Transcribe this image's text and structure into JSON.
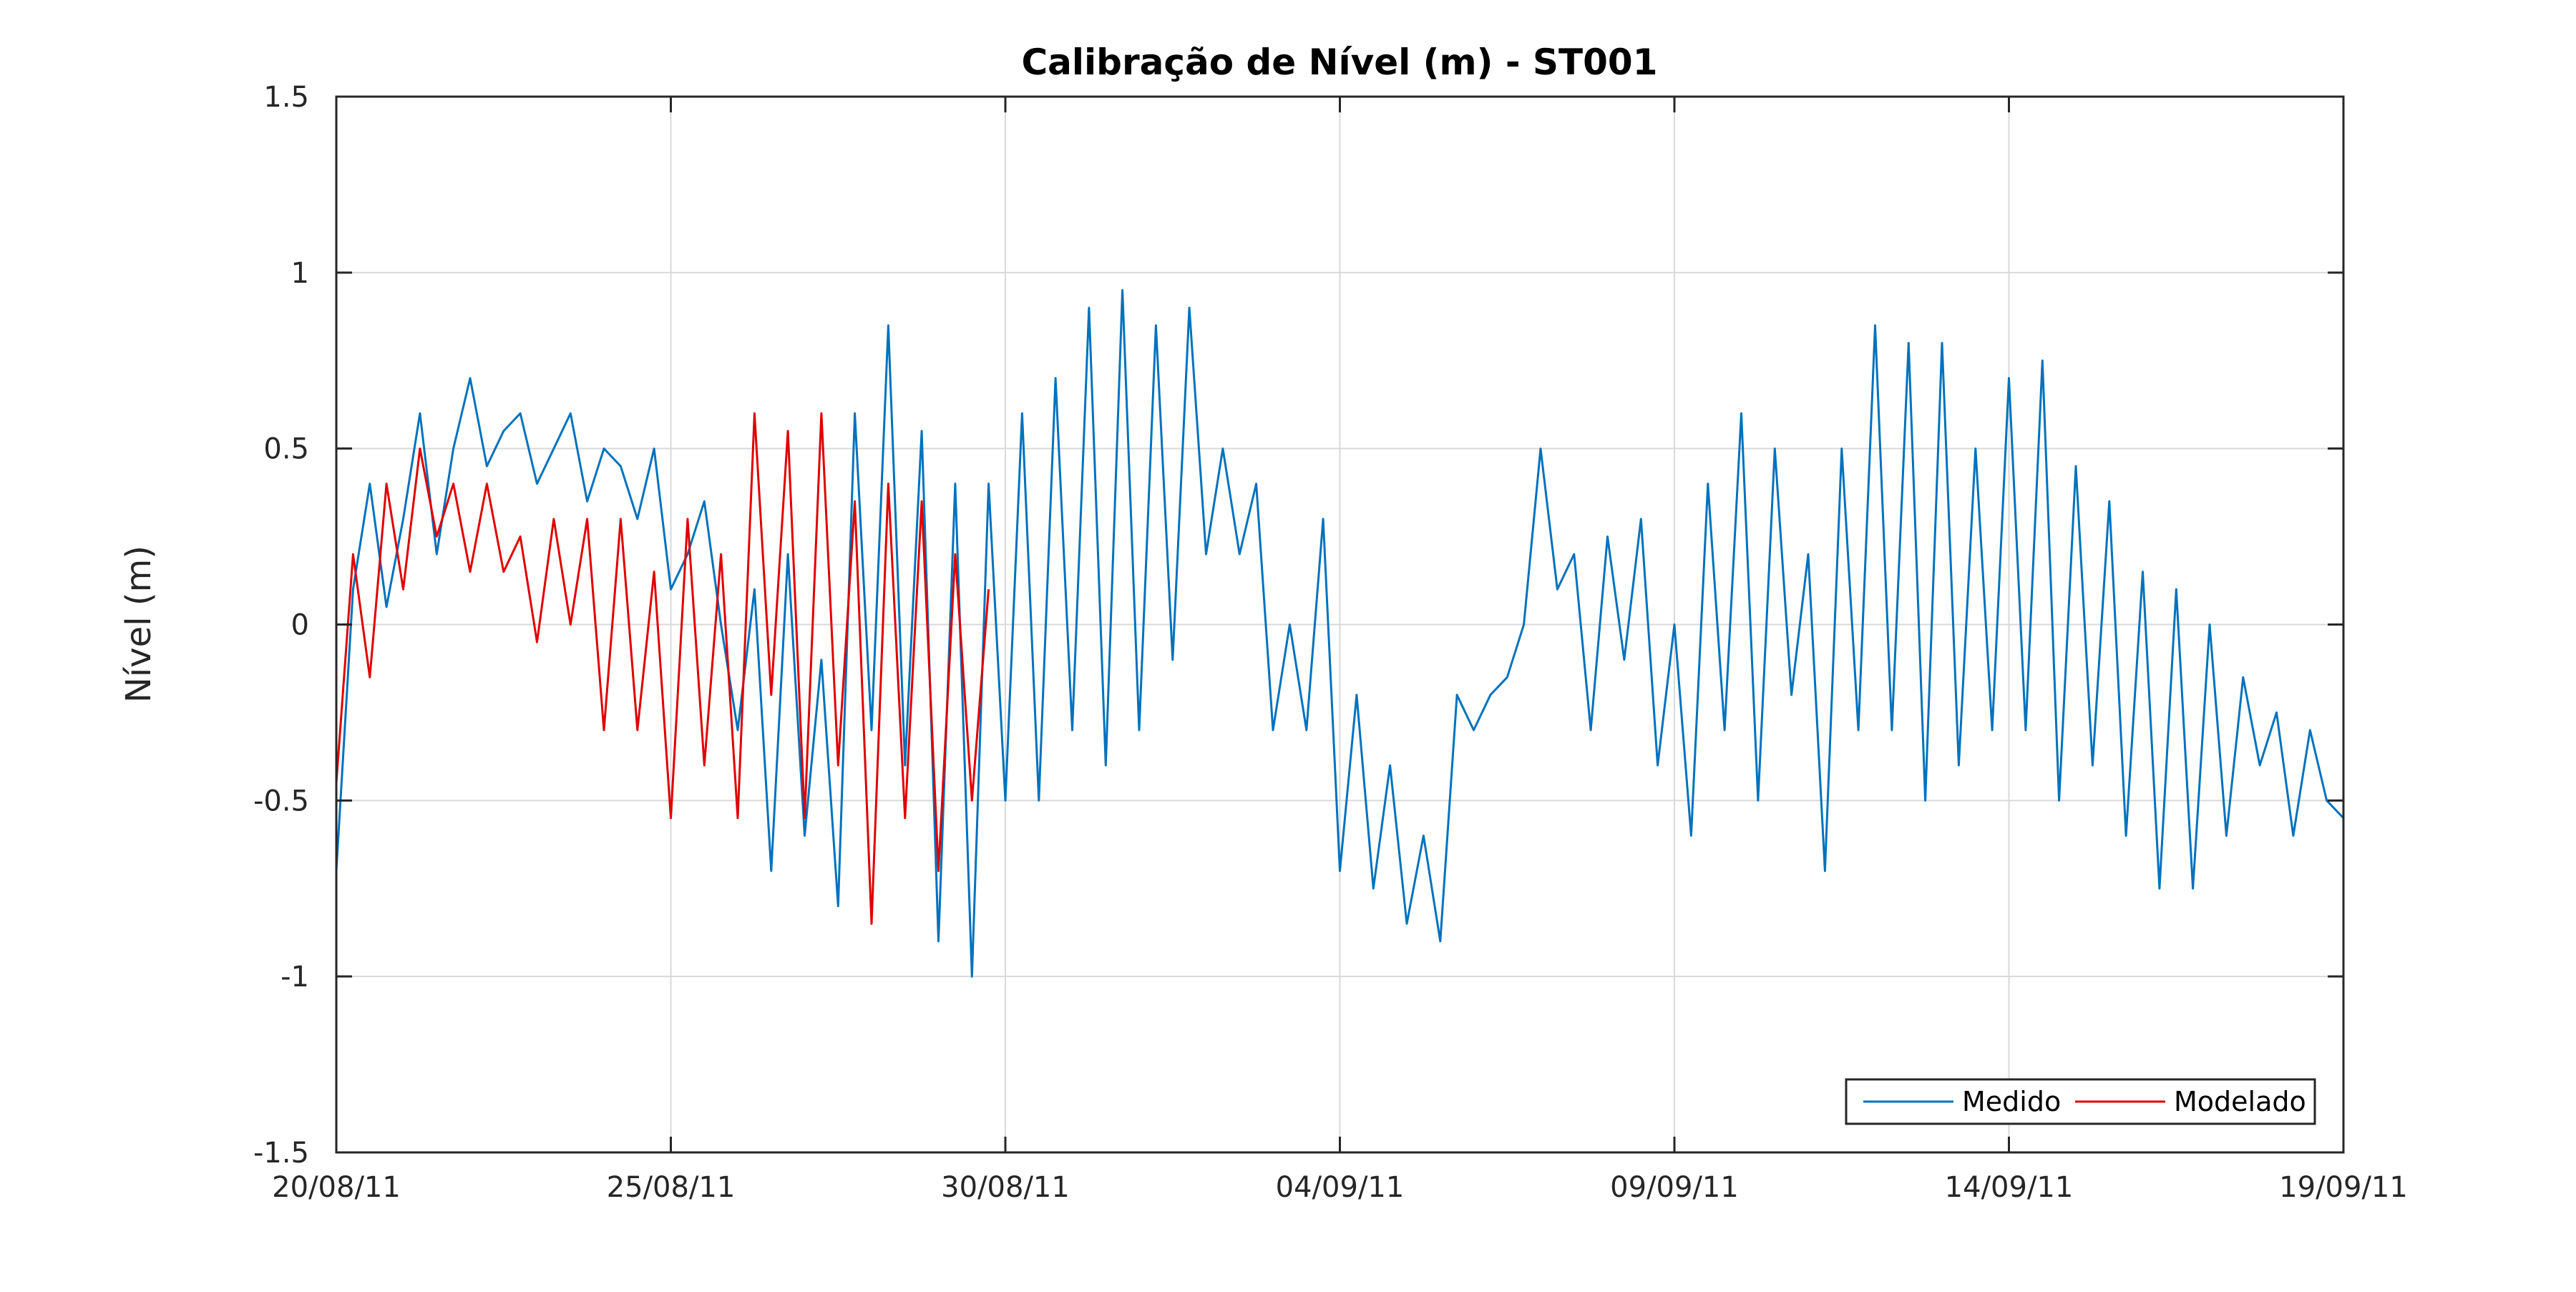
{
  "chart_data": {
    "type": "line",
    "title": "Calibração de Nível (m) - ST001",
    "xlabel": "",
    "ylabel": "Nível (m)",
    "x_unit": "date",
    "xlim": [
      "2011-08-20",
      "2011-09-19"
    ],
    "ylim": [
      -1.5,
      1.5
    ],
    "xticks": [
      "20/08/11",
      "25/08/11",
      "30/08/11",
      "04/09/11",
      "09/09/11",
      "14/09/11",
      "19/09/11"
    ],
    "yticks": [
      "-1.5",
      "-1",
      "-0.5",
      "0",
      "0.5",
      "1",
      "1.5"
    ],
    "grid": true,
    "legend_position": "bottom-right",
    "colors": {
      "Medido": "#0072BD",
      "Modelado": "#E00000"
    },
    "series": [
      {
        "name": "Medido",
        "x": [
          "2011-08-20 00:00",
          "2011-08-20 06:00",
          "2011-08-20 12:00",
          "2011-08-20 18:00",
          "2011-08-21 00:00",
          "2011-08-21 06:00",
          "2011-08-21 12:00",
          "2011-08-21 18:00",
          "2011-08-22 00:00",
          "2011-08-22 06:00",
          "2011-08-22 12:00",
          "2011-08-22 18:00",
          "2011-08-23 00:00",
          "2011-08-23 06:00",
          "2011-08-23 12:00",
          "2011-08-23 18:00",
          "2011-08-24 00:00",
          "2011-08-24 06:00",
          "2011-08-24 12:00",
          "2011-08-24 18:00",
          "2011-08-25 00:00",
          "2011-08-25 06:00",
          "2011-08-25 12:00",
          "2011-08-25 18:00",
          "2011-08-26 00:00",
          "2011-08-26 06:00",
          "2011-08-26 12:00",
          "2011-08-26 18:00",
          "2011-08-27 00:00",
          "2011-08-27 06:00",
          "2011-08-27 12:00",
          "2011-08-27 18:00",
          "2011-08-28 00:00",
          "2011-08-28 06:00",
          "2011-08-28 12:00",
          "2011-08-28 18:00",
          "2011-08-29 00:00",
          "2011-08-29 06:00",
          "2011-08-29 12:00",
          "2011-08-29 18:00",
          "2011-08-30 00:00",
          "2011-08-30 06:00",
          "2011-08-30 12:00",
          "2011-08-30 18:00",
          "2011-08-31 00:00",
          "2011-08-31 06:00",
          "2011-08-31 12:00",
          "2011-08-31 18:00",
          "2011-09-01 00:00",
          "2011-09-01 06:00",
          "2011-09-01 12:00",
          "2011-09-01 18:00",
          "2011-09-02 00:00",
          "2011-09-02 06:00",
          "2011-09-02 12:00",
          "2011-09-02 18:00",
          "2011-09-03 00:00",
          "2011-09-03 06:00",
          "2011-09-03 12:00",
          "2011-09-03 18:00",
          "2011-09-04 00:00",
          "2011-09-04 06:00",
          "2011-09-04 12:00",
          "2011-09-04 18:00",
          "2011-09-05 00:00",
          "2011-09-05 06:00",
          "2011-09-05 12:00",
          "2011-09-05 18:00",
          "2011-09-06 00:00",
          "2011-09-06 06:00",
          "2011-09-06 12:00",
          "2011-09-06 18:00",
          "2011-09-07 00:00",
          "2011-09-07 06:00",
          "2011-09-07 12:00",
          "2011-09-07 18:00",
          "2011-09-08 00:00",
          "2011-09-08 06:00",
          "2011-09-08 12:00",
          "2011-09-08 18:00",
          "2011-09-09 00:00",
          "2011-09-09 06:00",
          "2011-09-09 12:00",
          "2011-09-09 18:00",
          "2011-09-10 00:00",
          "2011-09-10 06:00",
          "2011-09-10 12:00",
          "2011-09-10 18:00",
          "2011-09-11 00:00",
          "2011-09-11 06:00",
          "2011-09-11 12:00",
          "2011-09-11 18:00",
          "2011-09-12 00:00",
          "2011-09-12 06:00",
          "2011-09-12 12:00",
          "2011-09-12 18:00",
          "2011-09-13 00:00",
          "2011-09-13 06:00",
          "2011-09-13 12:00",
          "2011-09-13 18:00",
          "2011-09-14 00:00",
          "2011-09-14 06:00",
          "2011-09-14 12:00",
          "2011-09-14 18:00",
          "2011-09-15 00:00",
          "2011-09-15 06:00",
          "2011-09-15 12:00",
          "2011-09-15 18:00",
          "2011-09-16 00:00",
          "2011-09-16 06:00",
          "2011-09-16 12:00",
          "2011-09-16 18:00",
          "2011-09-17 00:00",
          "2011-09-17 06:00",
          "2011-09-17 12:00",
          "2011-09-17 18:00",
          "2011-09-18 00:00",
          "2011-09-18 06:00",
          "2011-09-18 12:00",
          "2011-09-18 18:00",
          "2011-09-19 00:00"
        ],
        "y": [
          -0.7,
          0.1,
          0.4,
          0.05,
          0.3,
          0.6,
          0.2,
          0.5,
          0.7,
          0.45,
          0.55,
          0.6,
          0.4,
          0.5,
          0.6,
          0.35,
          0.5,
          0.45,
          0.3,
          0.5,
          0.1,
          0.2,
          0.35,
          0.0,
          -0.3,
          0.1,
          -0.7,
          0.2,
          -0.6,
          -0.1,
          -0.8,
          0.6,
          -0.3,
          0.85,
          -0.4,
          0.55,
          -0.9,
          0.4,
          -1.0,
          0.4,
          -0.5,
          0.6,
          -0.5,
          0.7,
          -0.3,
          0.9,
          -0.4,
          0.95,
          -0.3,
          0.85,
          -0.1,
          0.9,
          0.2,
          0.5,
          0.2,
          0.4,
          -0.3,
          0.0,
          -0.3,
          0.3,
          -0.7,
          -0.2,
          -0.75,
          -0.4,
          -0.85,
          -0.6,
          -0.9,
          -0.2,
          -0.3,
          -0.2,
          -0.15,
          0.0,
          0.5,
          0.1,
          0.2,
          -0.3,
          0.25,
          -0.1,
          0.3,
          -0.4,
          0.0,
          -0.6,
          0.4,
          -0.3,
          0.6,
          -0.5,
          0.5,
          -0.2,
          0.2,
          -0.7,
          0.5,
          -0.3,
          0.85,
          -0.3,
          0.8,
          -0.5,
          0.8,
          -0.4,
          0.5,
          -0.3,
          0.7,
          -0.3,
          0.75,
          -0.5,
          0.45,
          -0.4,
          0.35,
          -0.6,
          0.15,
          -0.75,
          0.1,
          -0.75,
          0.0,
          -0.6,
          -0.15,
          -0.4,
          -0.25,
          -0.6,
          -0.3,
          -0.5,
          -0.55
        ]
      },
      {
        "name": "Modelado",
        "x": [
          "2011-08-20 00:00",
          "2011-08-20 06:00",
          "2011-08-20 12:00",
          "2011-08-20 18:00",
          "2011-08-21 00:00",
          "2011-08-21 06:00",
          "2011-08-21 12:00",
          "2011-08-21 18:00",
          "2011-08-22 00:00",
          "2011-08-22 06:00",
          "2011-08-22 12:00",
          "2011-08-22 18:00",
          "2011-08-23 00:00",
          "2011-08-23 06:00",
          "2011-08-23 12:00",
          "2011-08-23 18:00",
          "2011-08-24 00:00",
          "2011-08-24 06:00",
          "2011-08-24 12:00",
          "2011-08-24 18:00",
          "2011-08-25 00:00",
          "2011-08-25 06:00",
          "2011-08-25 12:00",
          "2011-08-25 18:00",
          "2011-08-26 00:00",
          "2011-08-26 06:00",
          "2011-08-26 12:00",
          "2011-08-26 18:00",
          "2011-08-27 00:00",
          "2011-08-27 06:00",
          "2011-08-27 12:00",
          "2011-08-27 18:00",
          "2011-08-28 00:00",
          "2011-08-28 06:00",
          "2011-08-28 12:00",
          "2011-08-28 18:00",
          "2011-08-29 00:00",
          "2011-08-29 06:00",
          "2011-08-29 12:00",
          "2011-08-29 18:00"
        ],
        "y": [
          -0.45,
          0.2,
          -0.15,
          0.4,
          0.1,
          0.5,
          0.25,
          0.4,
          0.15,
          0.4,
          0.15,
          0.25,
          -0.05,
          0.3,
          0.0,
          0.3,
          -0.3,
          0.3,
          -0.3,
          0.15,
          -0.55,
          0.3,
          -0.4,
          0.2,
          -0.55,
          0.6,
          -0.2,
          0.55,
          -0.55,
          0.6,
          -0.4,
          0.35,
          -0.85,
          0.4,
          -0.55,
          0.35,
          -0.7,
          0.2,
          -0.5,
          0.1
        ]
      }
    ]
  }
}
